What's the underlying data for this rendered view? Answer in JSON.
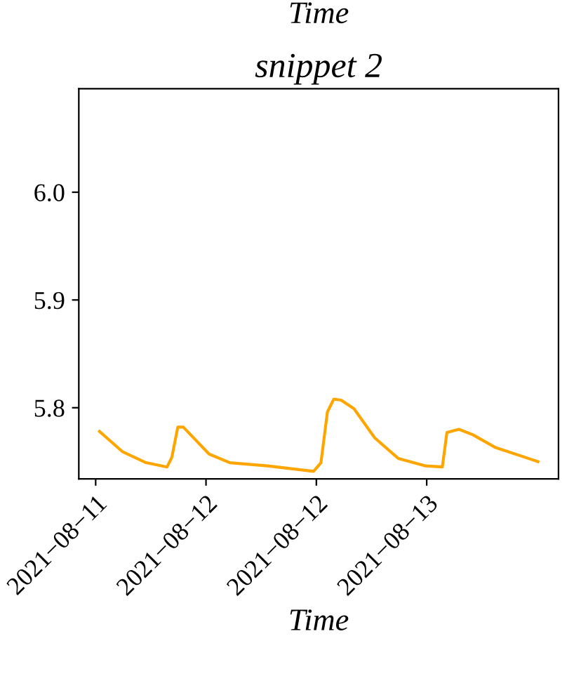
{
  "chart_data": {
    "type": "line",
    "title": "snippet 2",
    "xlabel": "Time",
    "annotations": [
      "Time"
    ],
    "x": [
      "2021-08-11T00:25",
      "2021-08-11T02:57",
      "2021-08-11T05:29",
      "2021-08-11T07:46",
      "2021-08-11T08:17",
      "2021-08-11T08:56",
      "2021-08-11T09:32",
      "2021-08-11T12:20",
      "2021-08-11T14:36",
      "2021-08-11T18:42",
      "2021-08-11T23:42",
      "2021-08-12T00:30",
      "2021-08-12T01:12",
      "2021-08-12T01:54",
      "2021-08-12T02:42",
      "2021-08-12T04:06",
      "2021-08-12T06:21",
      "2021-08-12T08:54",
      "2021-08-12T11:54",
      "2021-08-12T13:42",
      "2021-08-12T14:12",
      "2021-08-12T15:30",
      "2021-08-12T17:00",
      "2021-08-12T19:30",
      "2021-08-13T00:06"
    ],
    "series": [
      {
        "color": "#ffa500",
        "values": [
          5.778,
          5.759,
          5.749,
          5.745,
          5.754,
          5.782,
          5.782,
          5.757,
          5.749,
          5.746,
          5.741,
          5.749,
          5.796,
          5.808,
          5.807,
          5.799,
          5.772,
          5.753,
          5.746,
          5.745,
          5.777,
          5.78,
          5.775,
          5.763,
          5.75
        ]
      }
    ],
    "xlim": [
      "2021-08-10T22:10",
      "2021-08-13T02:20"
    ],
    "xticks": [
      {
        "value": "2021-08-11T00:00",
        "label": "2021−08−11"
      },
      {
        "value": "2021-08-11T12:00",
        "label": "2021−08−12"
      },
      {
        "value": "2021-08-12T00:00",
        "label": "2021−08−12"
      },
      {
        "value": "2021-08-12T12:00",
        "label": "2021−08−13"
      }
    ],
    "ylim": [
      5.734,
      6.096
    ],
    "yticks": [
      5.8,
      5.9,
      {
        "value": 6,
        "label": "6.0"
      }
    ],
    "grid": false,
    "marker": "none",
    "line_style": "solid"
  }
}
